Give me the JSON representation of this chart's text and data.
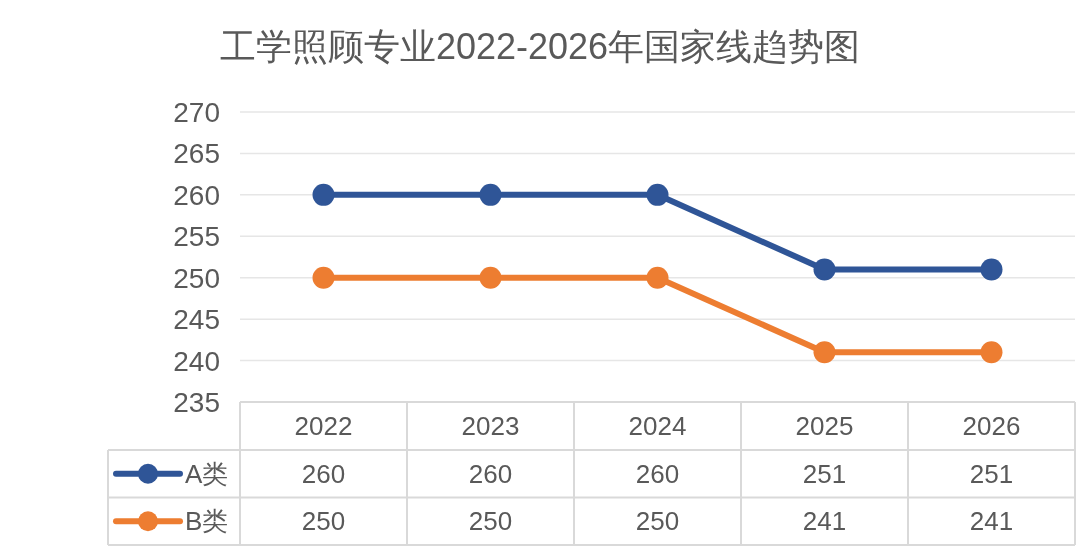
{
  "chart_data": {
    "type": "line",
    "title": "工学照顾专业2022-2026年国家线趋势图",
    "categories": [
      "2022",
      "2023",
      "2024",
      "2025",
      "2026"
    ],
    "series": [
      {
        "name": "A类",
        "color": "#2f5597",
        "values": [
          260,
          260,
          260,
          251,
          251
        ]
      },
      {
        "name": "B类",
        "color": "#ed7d31",
        "values": [
          250,
          250,
          250,
          241,
          241
        ]
      }
    ],
    "ylim": [
      235,
      270
    ],
    "yticks": [
      235,
      240,
      245,
      250,
      255,
      260,
      265,
      270
    ],
    "grid": "y",
    "legend": "bottom",
    "marker": "circle",
    "line_style": "solid",
    "data_labels": true
  }
}
